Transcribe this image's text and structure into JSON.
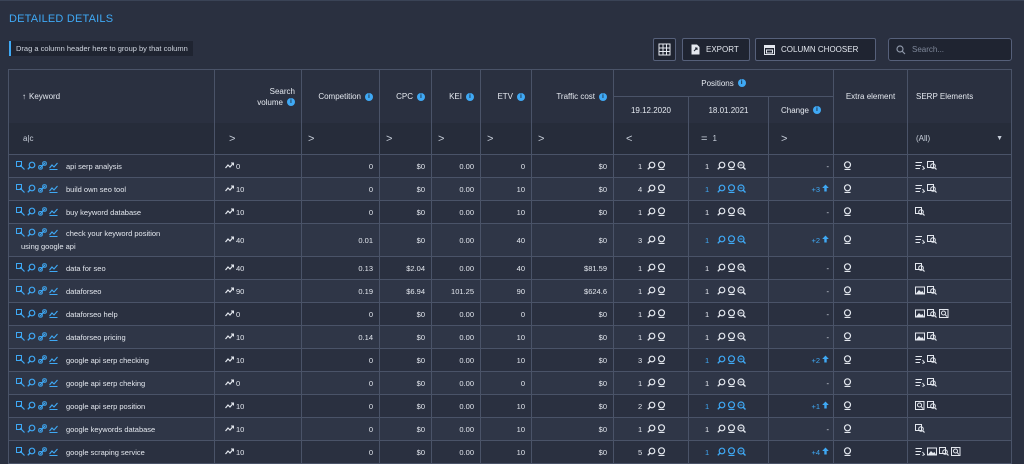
{
  "page": {
    "title": "DETAILED DETAILS",
    "group_hint": "Drag a column header here to group by that column",
    "export_label": "EXPORT",
    "column_chooser_label": "COLUMN CHOOSER",
    "search_placeholder": "Search..."
  },
  "columns": {
    "keyword": "Keyword",
    "search_volume_1": "Search",
    "search_volume_2": "volume",
    "competition": "Competition",
    "cpc": "CPC",
    "kei": "KEI",
    "etv": "ETV",
    "traffic_cost": "Traffic cost",
    "positions": "Positions",
    "date1": "19.12.2020",
    "date2": "18.01.2021",
    "change": "Change",
    "extra": "Extra element",
    "serp": "SERP Elements"
  },
  "filters": {
    "keyword": "a|c",
    "gt": ">",
    "lt": "<",
    "eq": "=",
    "date2_value": "1",
    "serp_value": "(All)"
  },
  "rows": [
    {
      "keyword": "api serp analysis",
      "keyword2": "",
      "volume": "0",
      "competition": "0",
      "cpc": "$0",
      "kei": "0.00",
      "etv": "0",
      "cost": "$0",
      "pos1": "1",
      "pos2": "1",
      "pos2_blue": false,
      "change": "-",
      "serp": [
        "list",
        "search"
      ]
    },
    {
      "keyword": "build own seo tool",
      "keyword2": "",
      "volume": "10",
      "competition": "0",
      "cpc": "$0",
      "kei": "0.00",
      "etv": "10",
      "cost": "$0",
      "pos1": "4",
      "pos2": "1",
      "pos2_blue": true,
      "change": "+3",
      "serp": [
        "list",
        "search"
      ]
    },
    {
      "keyword": "buy keyword database",
      "keyword2": "",
      "volume": "10",
      "competition": "0",
      "cpc": "$0",
      "kei": "0.00",
      "etv": "10",
      "cost": "$0",
      "pos1": "1",
      "pos2": "1",
      "pos2_blue": false,
      "change": "-",
      "serp": [
        "search"
      ]
    },
    {
      "keyword": "check your keyword position",
      "keyword2": "using google api",
      "volume": "40",
      "competition": "0.01",
      "cpc": "$0",
      "kei": "0.00",
      "etv": "40",
      "cost": "$0",
      "pos1": "3",
      "pos2": "1",
      "pos2_blue": true,
      "change": "+2",
      "serp": [
        "list",
        "search"
      ]
    },
    {
      "keyword": "data for seo",
      "keyword2": "",
      "volume": "40",
      "competition": "0.13",
      "cpc": "$2.04",
      "kei": "0.00",
      "etv": "40",
      "cost": "$81.59",
      "pos1": "1",
      "pos2": "1",
      "pos2_blue": false,
      "change": "-",
      "serp": [
        "search"
      ]
    },
    {
      "keyword": "dataforseo",
      "keyword2": "",
      "volume": "90",
      "competition": "0.19",
      "cpc": "$6.94",
      "kei": "101.25",
      "etv": "90",
      "cost": "$624.6",
      "pos1": "1",
      "pos2": "1",
      "pos2_blue": false,
      "change": "-",
      "serp": [
        "image",
        "search"
      ]
    },
    {
      "keyword": "dataforseo help",
      "keyword2": "",
      "volume": "0",
      "competition": "0",
      "cpc": "$0",
      "kei": "0.00",
      "etv": "0",
      "cost": "$0",
      "pos1": "1",
      "pos2": "1",
      "pos2_blue": false,
      "change": "-",
      "serp": [
        "image",
        "search",
        "knowledge"
      ]
    },
    {
      "keyword": "dataforseo pricing",
      "keyword2": "",
      "volume": "10",
      "competition": "0.14",
      "cpc": "$0",
      "kei": "0.00",
      "etv": "10",
      "cost": "$0",
      "pos1": "1",
      "pos2": "1",
      "pos2_blue": false,
      "change": "-",
      "serp": [
        "image",
        "search"
      ]
    },
    {
      "keyword": "google api serp checking",
      "keyword2": "",
      "volume": "10",
      "competition": "0",
      "cpc": "$0",
      "kei": "0.00",
      "etv": "10",
      "cost": "$0",
      "pos1": "3",
      "pos2": "1",
      "pos2_blue": true,
      "change": "+2",
      "serp": [
        "list",
        "search"
      ]
    },
    {
      "keyword": "google api serp cheking",
      "keyword2": "",
      "volume": "0",
      "competition": "0",
      "cpc": "$0",
      "kei": "0.00",
      "etv": "0",
      "cost": "$0",
      "pos1": "1",
      "pos2": "1",
      "pos2_blue": false,
      "change": "-",
      "serp": [
        "list",
        "search"
      ]
    },
    {
      "keyword": "google api serp position",
      "keyword2": "",
      "volume": "10",
      "competition": "0",
      "cpc": "$0",
      "kei": "0.00",
      "etv": "10",
      "cost": "$0",
      "pos1": "2",
      "pos2": "1",
      "pos2_blue": true,
      "change": "+1",
      "serp": [
        "knowledge",
        "search"
      ]
    },
    {
      "keyword": "google keywords database",
      "keyword2": "",
      "volume": "10",
      "competition": "0",
      "cpc": "$0",
      "kei": "0.00",
      "etv": "10",
      "cost": "$0",
      "pos1": "1",
      "pos2": "1",
      "pos2_blue": false,
      "change": "-",
      "serp": [
        "search"
      ]
    },
    {
      "keyword": "google scraping service",
      "keyword2": "",
      "volume": "10",
      "competition": "0",
      "cpc": "$0",
      "kei": "0.00",
      "etv": "10",
      "cost": "$0",
      "pos1": "5",
      "pos2": "1",
      "pos2_blue": true,
      "change": "+4",
      "serp": [
        "list",
        "image",
        "search",
        "knowledge"
      ]
    }
  ],
  "colors": {
    "accent": "#3fa9f5",
    "background": "#2a3040",
    "border": "#4a5368"
  },
  "icons": [
    "grid-export-icon",
    "file-export-icon",
    "column-chooser-icon",
    "search-icon",
    "info-icon",
    "trend-icon",
    "arrow-up-icon",
    "magnifier-icon",
    "pin-icon",
    "link-icon",
    "chart-icon",
    "list-icon",
    "image-icon",
    "knowledge-icon"
  ]
}
